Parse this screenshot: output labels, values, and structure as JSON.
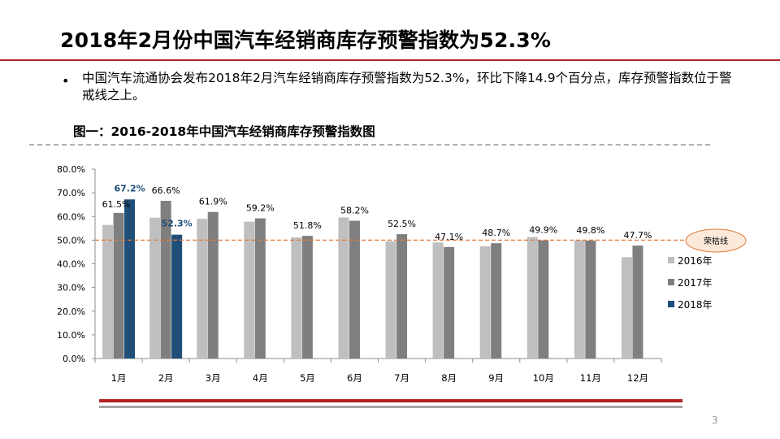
{
  "slide": {
    "title": "2018年2月份中国汽车经销商库存预警指数为52.3%",
    "bullet": "中国汽车流通协会发布2018年2月汽车经销商库存预警指数为52.3%，环比下降14.9个百分点，库存预警指数位于警戒线之上。",
    "figure_title": "图一：2016-2018年中国汽车经销商库存预警指数图",
    "page_number": "3"
  },
  "colors": {
    "accent_red": "#b22222",
    "series_2016": "#bfbfbf",
    "series_2017": "#7f7f7f",
    "series_2018": "#1f4e79",
    "threshold_line": "#e07b39"
  },
  "chart_data": {
    "type": "bar",
    "categories": [
      "1月",
      "2月",
      "3月",
      "4月",
      "5月",
      "6月",
      "7月",
      "8月",
      "9月",
      "10月",
      "11月",
      "12月"
    ],
    "series": [
      {
        "name": "2016年",
        "values": [
          56.4,
          59.5,
          59.0,
          57.8,
          51.2,
          59.6,
          49.5,
          49.0,
          47.4,
          51.3,
          50.0,
          42.8
        ]
      },
      {
        "name": "2017年",
        "values": [
          61.5,
          66.6,
          61.9,
          59.2,
          51.8,
          58.2,
          52.5,
          47.1,
          48.7,
          49.9,
          49.8,
          47.7
        ]
      },
      {
        "name": "2018年",
        "values": [
          67.2,
          52.3,
          null,
          null,
          null,
          null,
          null,
          null,
          null,
          null,
          null,
          null
        ]
      }
    ],
    "data_labels": [
      {
        "category": "1月",
        "series": "2017年",
        "text": "61.5%"
      },
      {
        "category": "1月",
        "series": "2018年",
        "text": "67.2%"
      },
      {
        "category": "2月",
        "series": "2017年",
        "text": "66.6%"
      },
      {
        "category": "2月",
        "series": "2018年",
        "text": "52.3%"
      },
      {
        "category": "3月",
        "series": "2017年",
        "text": "61.9%"
      },
      {
        "category": "4月",
        "series": "2017年",
        "text": "59.2%"
      },
      {
        "category": "5月",
        "series": "2017年",
        "text": "51.8%"
      },
      {
        "category": "6月",
        "series": "2017年",
        "text": "58.2%"
      },
      {
        "category": "7月",
        "series": "2017年",
        "text": "52.5%"
      },
      {
        "category": "8月",
        "series": "2017年",
        "text": "47.1%"
      },
      {
        "category": "9月",
        "series": "2017年",
        "text": "48.7%"
      },
      {
        "category": "10月",
        "series": "2017年",
        "text": "49.9%"
      },
      {
        "category": "11月",
        "series": "2017年",
        "text": "49.8%"
      },
      {
        "category": "12月",
        "series": "2017年",
        "text": "47.7%"
      }
    ],
    "yticks": [
      "0.0%",
      "10.0%",
      "20.0%",
      "30.0%",
      "40.0%",
      "50.0%",
      "60.0%",
      "70.0%",
      "80.0%"
    ],
    "ylim": [
      0,
      80
    ],
    "threshold": {
      "value": 50,
      "label": "荣枯线"
    },
    "legend": {
      "position": "right"
    },
    "title": "",
    "xlabel": "",
    "ylabel": ""
  }
}
